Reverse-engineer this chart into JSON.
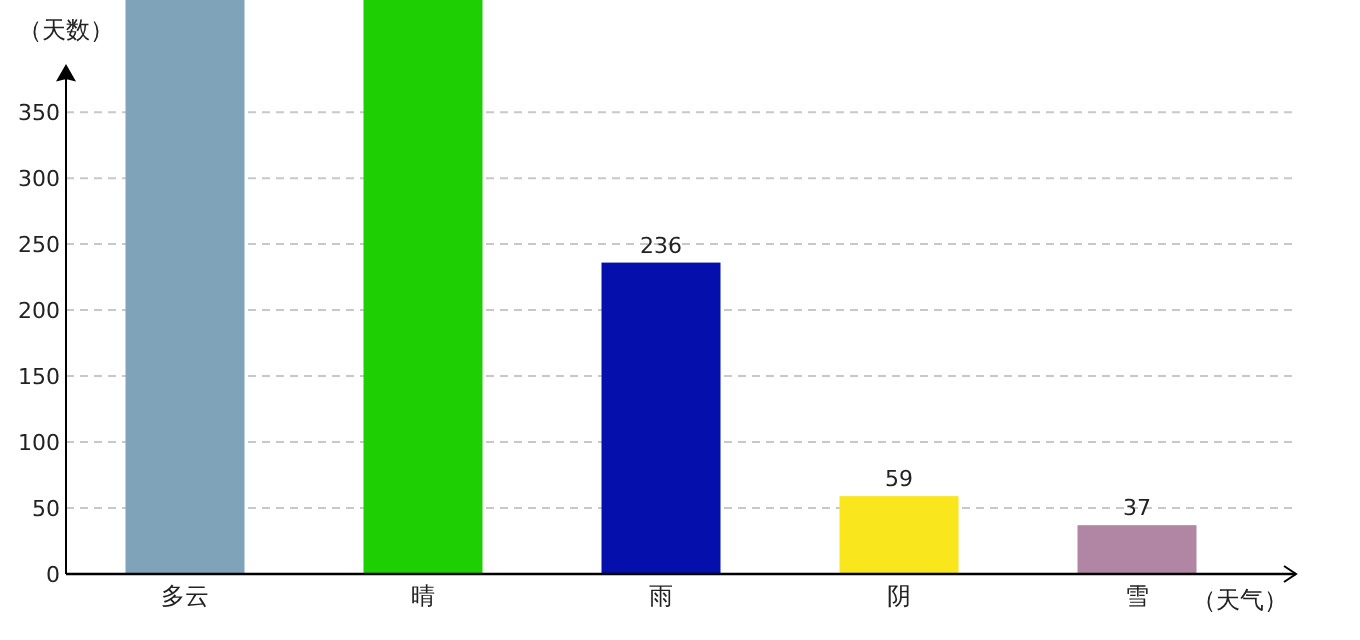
{
  "chart_data": {
    "type": "bar",
    "xlabel": "（天气）",
    "ylabel": "（天数）",
    "categories": [
      "多云",
      "晴",
      "雨",
      "阴",
      "雪"
    ],
    "values": [
      435,
      435,
      236,
      59,
      37
    ],
    "colors": [
      "#7fa3b8",
      "#1ecf03",
      "#050fab",
      "#f9e61d",
      "#b086a4"
    ],
    "value_labels": [
      null,
      null,
      "236",
      "59",
      "37"
    ],
    "ylim": [
      0,
      435
    ],
    "yticks": [
      0,
      50,
      100,
      150,
      200,
      250,
      300,
      350
    ],
    "grid": "y"
  }
}
